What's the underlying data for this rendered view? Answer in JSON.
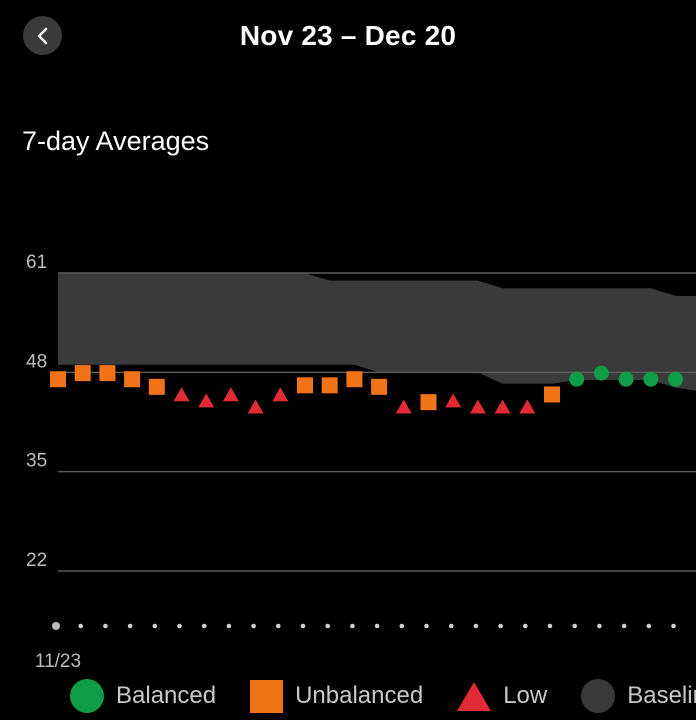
{
  "header": {
    "title": "Nov 23 – Dec 20",
    "back_icon": "chevron-left-icon"
  },
  "section_title": "7-day Averages",
  "legend": [
    {
      "key": "balanced",
      "label": "Balanced",
      "shape": "circle",
      "color": "#0f9d47"
    },
    {
      "key": "unbalanced",
      "label": "Unbalanced",
      "shape": "square",
      "color": "#f07318"
    },
    {
      "key": "low",
      "label": "Low",
      "shape": "triangle",
      "color": "#e02a35"
    },
    {
      "key": "baseline",
      "label": "Baseline",
      "shape": "circle",
      "color": "#3a3a3a"
    }
  ],
  "chart_data": {
    "type": "scatter",
    "title": "7-day Averages",
    "y_ticks": [
      22,
      35,
      48,
      61
    ],
    "ylim": [
      22,
      61
    ],
    "x_tick_labels": [
      {
        "index": 0,
        "label": "11/23"
      }
    ],
    "grid": true,
    "legend_position": "bottom",
    "series": [
      {
        "name": "Unbalanced",
        "marker": "square",
        "color": "#f07318",
        "points": [
          [
            0,
            47.1
          ],
          [
            1,
            47.9
          ],
          [
            2,
            47.9
          ],
          [
            3,
            47.1
          ],
          [
            4,
            46.1
          ],
          [
            10,
            46.3
          ],
          [
            11,
            46.3
          ],
          [
            12,
            47.1
          ],
          [
            13,
            46.1
          ],
          [
            15,
            44.1
          ],
          [
            20,
            45.1
          ]
        ]
      },
      {
        "name": "Low",
        "marker": "triangle",
        "color": "#e02a35",
        "points": [
          [
            5,
            45.0
          ],
          [
            6,
            44.2
          ],
          [
            7,
            45.0
          ],
          [
            8,
            43.4
          ],
          [
            9,
            45.0
          ],
          [
            14,
            43.4
          ],
          [
            16,
            44.2
          ],
          [
            17,
            43.4
          ],
          [
            18,
            43.4
          ],
          [
            19,
            43.4
          ]
        ]
      },
      {
        "name": "Balanced",
        "marker": "circle",
        "color": "#0f9d47",
        "points": [
          [
            21,
            47.1
          ],
          [
            22,
            47.9
          ],
          [
            23,
            47.1
          ],
          [
            24,
            47.1
          ],
          [
            25,
            47.1
          ]
        ]
      },
      {
        "name": "Baseline",
        "type": "band",
        "color": "#3a3a3a",
        "upper": [
          [
            0,
            61.0
          ],
          [
            10,
            61.0
          ],
          [
            11,
            60.0
          ],
          [
            17,
            60.0
          ],
          [
            18,
            59.0
          ],
          [
            24,
            59.0
          ],
          [
            25,
            58.0
          ],
          [
            26,
            58.0
          ]
        ],
        "lower": [
          [
            0,
            49.0
          ],
          [
            12,
            49.0
          ],
          [
            13,
            48.0
          ],
          [
            17,
            48.0
          ],
          [
            18,
            46.5
          ],
          [
            20,
            46.5
          ],
          [
            21,
            47.0
          ],
          [
            24,
            47.0
          ],
          [
            25,
            46.0
          ],
          [
            26,
            45.5
          ]
        ]
      }
    ]
  }
}
